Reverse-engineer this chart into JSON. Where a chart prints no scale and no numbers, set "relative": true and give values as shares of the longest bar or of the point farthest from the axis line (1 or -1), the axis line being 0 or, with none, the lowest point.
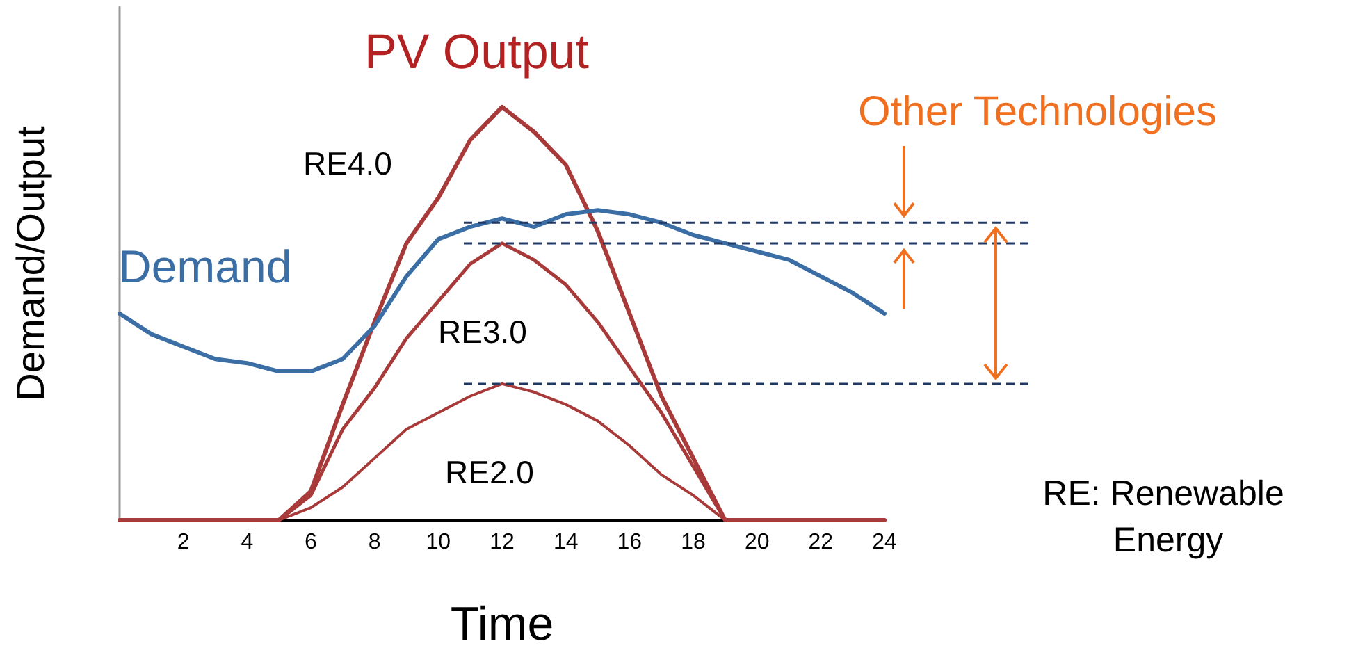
{
  "chart_data": {
    "type": "line",
    "title": "PV Output",
    "xlabel": "Time",
    "ylabel": "Demand/Output",
    "relative": true,
    "x": [
      0,
      1,
      2,
      3,
      4,
      5,
      6,
      7,
      8,
      9,
      10,
      11,
      12,
      13,
      14,
      15,
      16,
      17,
      18,
      19,
      20,
      21,
      22,
      23,
      24
    ],
    "xlim": [
      0,
      24
    ],
    "xticks": [
      2,
      4,
      6,
      8,
      10,
      12,
      14,
      16,
      18,
      20,
      22,
      24
    ],
    "series": [
      {
        "name": "Demand",
        "color": "#3a6ea5",
        "values": [
          0.5,
          0.45,
          0.42,
          0.39,
          0.38,
          0.36,
          0.36,
          0.39,
          0.47,
          0.59,
          0.68,
          0.71,
          0.73,
          0.71,
          0.74,
          0.75,
          0.74,
          0.72,
          0.69,
          0.67,
          0.65,
          0.63,
          0.59,
          0.55,
          0.5
        ]
      },
      {
        "name": "RE4.0",
        "color": "#a83a3a",
        "values": [
          0,
          0,
          0,
          0,
          0,
          0,
          0.07,
          0.28,
          0.48,
          0.67,
          0.78,
          0.92,
          1,
          0.94,
          0.86,
          0.7,
          0.5,
          0.3,
          0.15,
          0,
          0,
          0,
          0,
          0,
          0
        ]
      },
      {
        "name": "RE3.0",
        "color": "#a83a3a",
        "values": [
          0,
          0,
          0,
          0,
          0,
          0,
          0.06,
          0.22,
          0.32,
          0.44,
          0.53,
          0.62,
          0.67,
          0.63,
          0.57,
          0.48,
          0.37,
          0.26,
          0.13,
          0,
          0,
          0,
          0,
          0,
          0
        ]
      },
      {
        "name": "RE2.0",
        "color": "#a83a3a",
        "values": [
          0,
          0,
          0,
          0,
          0,
          0,
          0.03,
          0.08,
          0.15,
          0.22,
          0.26,
          0.3,
          0.33,
          0.31,
          0.28,
          0.24,
          0.18,
          0.11,
          0.06,
          0,
          0,
          0,
          0,
          0,
          0
        ]
      }
    ],
    "ref_lines": [
      {
        "axis": "y",
        "value": 0.72,
        "color": "#1f3864",
        "line_style": "dashed"
      },
      {
        "axis": "y",
        "value": 0.67,
        "color": "#1f3864",
        "line_style": "dashed"
      },
      {
        "axis": "y",
        "value": 0.33,
        "color": "#1f3864",
        "line_style": "dashed"
      }
    ],
    "annotations": [
      "Other Technologies",
      "RE: Renewable Energy"
    ],
    "legend": false,
    "grid": false,
    "marker": "none",
    "line_style": "solid"
  }
}
